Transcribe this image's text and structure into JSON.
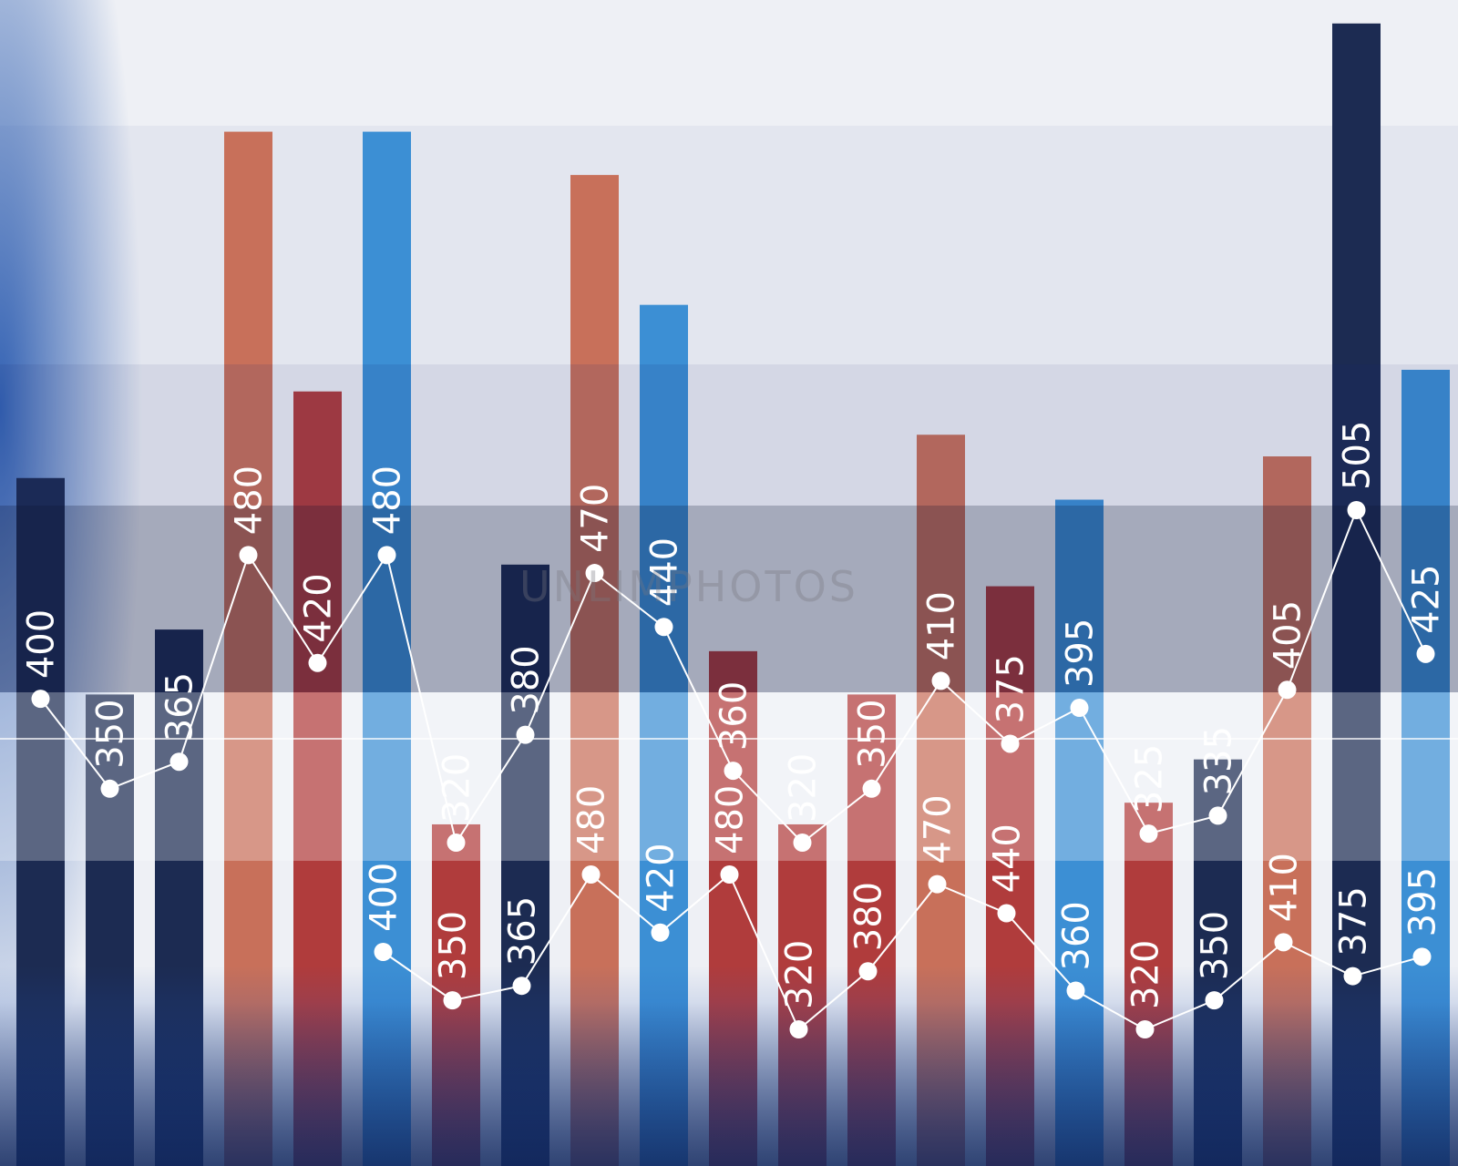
{
  "watermark": "UNLIMPHOTOS",
  "colors": {
    "background": "#eef0f5",
    "dark_navy": "#1c2b52",
    "coral": "#c8705a",
    "red": "#b03c3c",
    "blue": "#3c8fd4",
    "line": "#ffffff"
  },
  "chart_data": [
    {
      "type": "bar",
      "description_role": "upper bar + line series",
      "bars": [
        {
          "label": "400",
          "value": 400,
          "color": "dark_navy"
        },
        {
          "label": "350",
          "value": 350,
          "color": "dark_navy"
        },
        {
          "label": "365",
          "value": 365,
          "color": "dark_navy"
        },
        {
          "label": "480",
          "value": 480,
          "color": "coral"
        },
        {
          "label": "420",
          "value": 420,
          "color": "red"
        },
        {
          "label": "480",
          "value": 480,
          "color": "blue"
        },
        {
          "label": "320",
          "value": 320,
          "color": "red"
        },
        {
          "label": "380",
          "value": 380,
          "color": "dark_navy"
        },
        {
          "label": "470",
          "value": 470,
          "color": "coral"
        },
        {
          "label": "440",
          "value": 440,
          "color": "blue"
        },
        {
          "label": "360",
          "value": 360,
          "color": "red"
        },
        {
          "label": "320",
          "value": 320,
          "color": "red"
        },
        {
          "label": "350",
          "value": 350,
          "color": "red"
        },
        {
          "label": "410",
          "value": 410,
          "color": "coral"
        },
        {
          "label": "375",
          "value": 375,
          "color": "red"
        },
        {
          "label": "395",
          "value": 395,
          "color": "blue"
        },
        {
          "label": "325",
          "value": 325,
          "color": "red"
        },
        {
          "label": "335",
          "value": 335,
          "color": "dark_navy"
        },
        {
          "label": "405",
          "value": 405,
          "color": "coral"
        },
        {
          "label": "505",
          "value": 505,
          "color": "dark_navy"
        },
        {
          "label": "425",
          "value": 425,
          "color": "blue"
        }
      ],
      "line": [
        {
          "label": "400",
          "value": 400
        },
        {
          "label": "350",
          "value": 350
        },
        {
          "label": "365",
          "value": 365
        },
        {
          "label": "480",
          "value": 480
        },
        {
          "label": "420",
          "value": 420
        },
        {
          "label": "480",
          "value": 480
        },
        {
          "label": "320",
          "value": 320
        },
        {
          "label": "380",
          "value": 380
        },
        {
          "label": "470",
          "value": 470
        },
        {
          "label": "440",
          "value": 440
        },
        {
          "label": "360",
          "value": 360
        },
        {
          "label": "320",
          "value": 320
        },
        {
          "label": "350",
          "value": 350
        },
        {
          "label": "410",
          "value": 410
        },
        {
          "label": "375",
          "value": 375
        },
        {
          "label": "395",
          "value": 395
        },
        {
          "label": "325",
          "value": 325
        },
        {
          "label": "335",
          "value": 335
        },
        {
          "label": "405",
          "value": 405
        },
        {
          "label": "505",
          "value": 505
        },
        {
          "label": "425",
          "value": 425
        }
      ]
    },
    {
      "type": "line",
      "description_role": "lower reflected line series",
      "points": [
        {
          "label": "400",
          "value": 400
        },
        {
          "label": "350",
          "value": 350
        },
        {
          "label": "365",
          "value": 365
        },
        {
          "label": "480",
          "value": 480
        },
        {
          "label": "420",
          "value": 420
        },
        {
          "label": "480",
          "value": 480
        },
        {
          "label": "320",
          "value": 320
        },
        {
          "label": "380",
          "value": 380
        },
        {
          "label": "470",
          "value": 470
        },
        {
          "label": "440",
          "value": 440
        },
        {
          "label": "360",
          "value": 360
        },
        {
          "label": "320",
          "value": 320
        },
        {
          "label": "350",
          "value": 350
        },
        {
          "label": "410",
          "value": 410
        },
        {
          "label": "375",
          "value": 375
        },
        {
          "label": "395",
          "value": 395
        }
      ]
    }
  ]
}
